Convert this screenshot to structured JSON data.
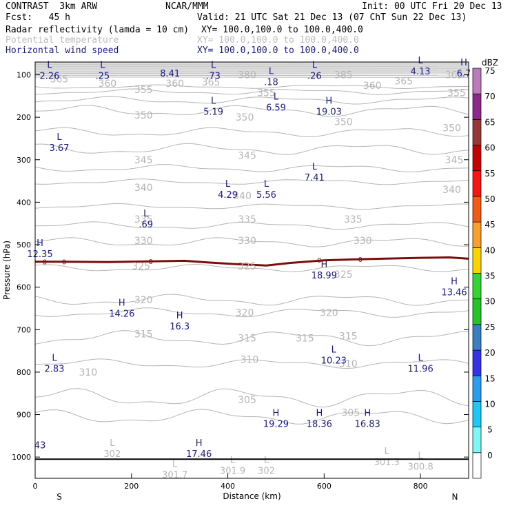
{
  "header": {
    "model": "CONTRAST  3km ARW",
    "org": "NCAR/MMM",
    "init": "Init: 00 UTC Fri 20 Dec 13",
    "fcst": "Fcst:   45 h",
    "valid": "Valid: 21 UTC Sat 21 Dec 13 (07 ChT Sun 22 Dec 13)",
    "fields": [
      {
        "name": "Radar reflectivity (lamda = 10 cm)",
        "xy": "XY= 100.0,100.0 to 100.0,400.0",
        "color": "#000000"
      },
      {
        "name": "Potential temperature",
        "xy": "XY= 100.0,100.0 to 100.0,400.0",
        "color": "#bdbdbd"
      },
      {
        "name": "Horizontal wind speed",
        "xy": "XY= 100.0,100.0 to 100.0,400.0",
        "color": "#1a1a8c"
      }
    ]
  },
  "chart_data": {
    "type": "cross-section contour",
    "xlabel": "Distance (km)",
    "ylabel": "Pressure (hPa)",
    "xlim": [
      0,
      900
    ],
    "ylim": [
      1050,
      70
    ],
    "x_ticks": [
      "0",
      "200",
      "400",
      "600",
      "800"
    ],
    "y_ticks": [
      "100",
      "200",
      "300",
      "400",
      "500",
      "600",
      "700",
      "800",
      "900",
      "1000"
    ],
    "x_end_labels": {
      "left": "S",
      "right": "N"
    },
    "colorbar": {
      "title": "dBZ",
      "levels": [
        "0",
        "5",
        "10",
        "15",
        "20",
        "25",
        "30",
        "35",
        "40",
        "45",
        "50",
        "55",
        "60",
        "65",
        "70",
        "75"
      ],
      "colors": [
        "#ffffff",
        "#7ff7f7",
        "#1ec8f5",
        "#2c9cf0",
        "#3434e6",
        "#3a7fc0",
        "#26c426",
        "#33d433",
        "#fcd400",
        "#f7a030",
        "#f35a18",
        "#f81414",
        "#c40000",
        "#963838",
        "#8a2a8a",
        "#bc7bbc"
      ]
    },
    "theta_labels": [
      {
        "x": 50,
        "p": 110,
        "text": "365"
      },
      {
        "x": 150,
        "p": 120,
        "text": "360"
      },
      {
        "x": 290,
        "p": 120,
        "text": "360"
      },
      {
        "x": 365,
        "p": 117,
        "text": "365"
      },
      {
        "x": 440,
        "p": 100,
        "text": "380"
      },
      {
        "x": 640,
        "p": 100,
        "text": "385"
      },
      {
        "x": 700,
        "p": 125,
        "text": "360"
      },
      {
        "x": 765,
        "p": 115,
        "text": "365"
      },
      {
        "x": 870,
        "p": 100,
        "text": "365"
      },
      {
        "x": 225,
        "p": 135,
        "text": "355"
      },
      {
        "x": 480,
        "p": 142,
        "text": "355"
      },
      {
        "x": 875,
        "p": 142,
        "text": "355"
      },
      {
        "x": 225,
        "p": 195,
        "text": "350"
      },
      {
        "x": 435,
        "p": 200,
        "text": "350"
      },
      {
        "x": 640,
        "p": 210,
        "text": "350"
      },
      {
        "x": 865,
        "p": 225,
        "text": "350"
      },
      {
        "x": 225,
        "p": 300,
        "text": "345"
      },
      {
        "x": 440,
        "p": 290,
        "text": "345"
      },
      {
        "x": 870,
        "p": 300,
        "text": "345"
      },
      {
        "x": 225,
        "p": 365,
        "text": "340"
      },
      {
        "x": 430,
        "p": 385,
        "text": "340"
      },
      {
        "x": 865,
        "p": 370,
        "text": "340"
      },
      {
        "x": 225,
        "p": 440,
        "text": "335"
      },
      {
        "x": 440,
        "p": 440,
        "text": "335"
      },
      {
        "x": 660,
        "p": 440,
        "text": "335"
      },
      {
        "x": 225,
        "p": 490,
        "text": "330"
      },
      {
        "x": 440,
        "p": 490,
        "text": "330"
      },
      {
        "x": 680,
        "p": 490,
        "text": "330"
      },
      {
        "x": 220,
        "p": 550,
        "text": "325"
      },
      {
        "x": 440,
        "p": 550,
        "text": "325"
      },
      {
        "x": 640,
        "p": 570,
        "text": "325"
      },
      {
        "x": 225,
        "p": 630,
        "text": "320"
      },
      {
        "x": 435,
        "p": 660,
        "text": "320"
      },
      {
        "x": 610,
        "p": 660,
        "text": "320"
      },
      {
        "x": 225,
        "p": 710,
        "text": "315"
      },
      {
        "x": 440,
        "p": 720,
        "text": "315"
      },
      {
        "x": 560,
        "p": 720,
        "text": "315"
      },
      {
        "x": 650,
        "p": 715,
        "text": "315"
      },
      {
        "x": 445,
        "p": 770,
        "text": "310"
      },
      {
        "x": 650,
        "p": 780,
        "text": "310"
      },
      {
        "x": 110,
        "p": 800,
        "text": "310"
      },
      {
        "x": 440,
        "p": 865,
        "text": "305"
      },
      {
        "x": 655,
        "p": 895,
        "text": "305"
      }
    ],
    "extrema": [
      {
        "x": 30,
        "p": 90,
        "type": "L",
        "value": "2.26"
      },
      {
        "x": 140,
        "p": 90,
        "type": "L",
        "value": ".25"
      },
      {
        "x": 280,
        "p": 85,
        "type": "",
        "value": "8.41"
      },
      {
        "x": 370,
        "p": 90,
        "type": "L",
        "value": ".73"
      },
      {
        "x": 490,
        "p": 105,
        "type": "L",
        "value": ".18"
      },
      {
        "x": 580,
        "p": 90,
        "type": "L",
        "value": ".26"
      },
      {
        "x": 800,
        "p": 80,
        "type": "L",
        "value": "4.13"
      },
      {
        "x": 890,
        "p": 85,
        "type": "H",
        "value": "6.7"
      },
      {
        "x": 370,
        "p": 175,
        "type": "L",
        "value": "5.19"
      },
      {
        "x": 500,
        "p": 165,
        "type": "L",
        "value": "6.59"
      },
      {
        "x": 610,
        "p": 175,
        "type": "H",
        "value": "19.03"
      },
      {
        "x": 50,
        "p": 260,
        "type": "L",
        "value": "3.67"
      },
      {
        "x": 580,
        "p": 330,
        "type": "L",
        "value": "7.41"
      },
      {
        "x": 400,
        "p": 370,
        "type": "L",
        "value": "4.29"
      },
      {
        "x": 480,
        "p": 370,
        "type": "L",
        "value": "5.56"
      },
      {
        "x": 230,
        "p": 440,
        "type": "L",
        "value": ".69"
      },
      {
        "x": 10,
        "p": 510,
        "type": "H",
        "value": "12.35"
      },
      {
        "x": 600,
        "p": 560,
        "type": "H",
        "value": "18.99"
      },
      {
        "x": 870,
        "p": 600,
        "type": "H",
        "value": "13.46"
      },
      {
        "x": 180,
        "p": 650,
        "type": "H",
        "value": "14.26"
      },
      {
        "x": 300,
        "p": 680,
        "type": "H",
        "value": "16.3"
      },
      {
        "x": 620,
        "p": 760,
        "type": "L",
        "value": "10.23"
      },
      {
        "x": 800,
        "p": 780,
        "type": "L",
        "value": "11.96"
      },
      {
        "x": 40,
        "p": 780,
        "type": "L",
        "value": "2.83"
      },
      {
        "x": 500,
        "p": 910,
        "type": "H",
        "value": "19.29"
      },
      {
        "x": 590,
        "p": 910,
        "type": "H",
        "value": "18.36"
      },
      {
        "x": 690,
        "p": 910,
        "type": "H",
        "value": "16.83"
      },
      {
        "x": 340,
        "p": 980,
        "type": "H",
        "value": "17.46"
      },
      {
        "x": 10,
        "p": 960,
        "type": "",
        "value": "43"
      }
    ],
    "theta_extrema": [
      {
        "x": 160,
        "p": 980,
        "type": "L",
        "value": "302"
      },
      {
        "x": 290,
        "p": 1030,
        "type": "L",
        "value": "301.7"
      },
      {
        "x": 410,
        "p": 1020,
        "type": "L",
        "value": "301.9"
      },
      {
        "x": 480,
        "p": 1020,
        "type": "L",
        "value": "302"
      },
      {
        "x": 730,
        "p": 1000,
        "type": "L",
        "value": "301.3"
      },
      {
        "x": 800,
        "p": 1010,
        "type": "L",
        "value": "300.8"
      }
    ],
    "reflectivity_contour_value": "0"
  }
}
